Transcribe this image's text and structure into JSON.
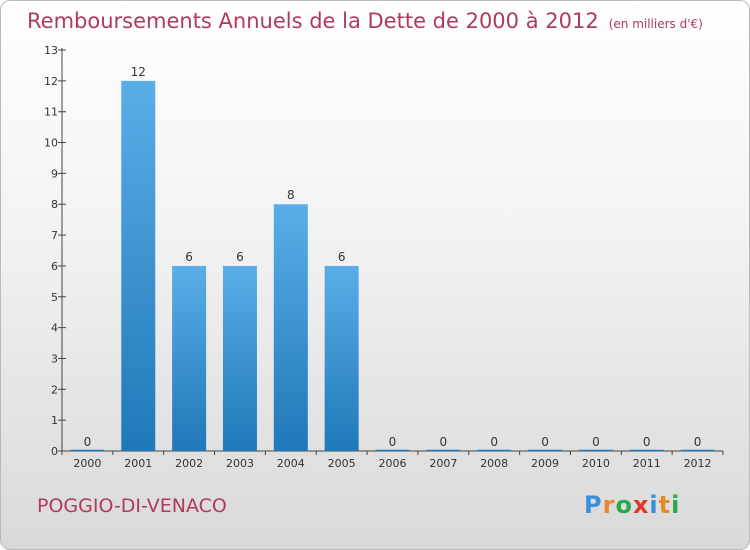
{
  "header": {
    "title": "Remboursements Annuels de la Dette de 2000 à 2012",
    "unit": "(en milliers d'€)"
  },
  "footer": {
    "commune": "POGGIO-DI-VENACO",
    "logo": "Proxiti"
  },
  "colors": {
    "title": "#b03a5b",
    "bar_top": "#5aaee8",
    "bar_bottom": "#1f78b8",
    "logo_letters": [
      "#3a8fd6",
      "#e6892a",
      "#2aa84a",
      "#d93a2a",
      "#3a8fd6",
      "#e6892a",
      "#2aa84a"
    ]
  },
  "chart_data": {
    "type": "bar",
    "title": "Remboursements Annuels de la Dette de 2000 à 2012",
    "categories": [
      "2000",
      "2001",
      "2002",
      "2003",
      "2004",
      "2005",
      "2006",
      "2007",
      "2008",
      "2009",
      "2010",
      "2011",
      "2012"
    ],
    "values": [
      0,
      12,
      6,
      6,
      8,
      6,
      0,
      0,
      0,
      0,
      0,
      0,
      0
    ],
    "data_labels": [
      "0",
      "12",
      "6",
      "6",
      "8",
      "6",
      "0",
      "0",
      "0",
      "0",
      "0",
      "0",
      "0"
    ],
    "yticks": [
      "0",
      "1",
      "2",
      "3",
      "4",
      "5",
      "6",
      "7",
      "8",
      "9",
      "10",
      "11",
      "12",
      "13"
    ],
    "ylim": [
      0,
      13
    ],
    "xlabel": "",
    "ylabel": "",
    "grid": false
  }
}
